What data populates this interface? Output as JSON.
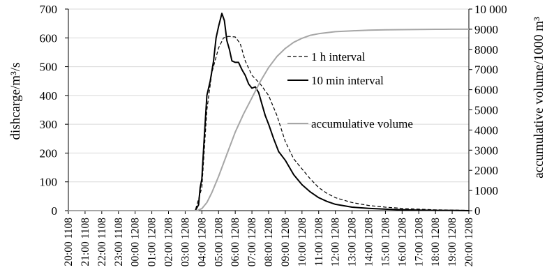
{
  "chart_data": {
    "type": "line",
    "xlabel": "",
    "ylabel": "dishcarge/m³/s",
    "y2label": "accumulative volume/1000 m³",
    "ylim": [
      0,
      700
    ],
    "y2lim": [
      0,
      10000
    ],
    "yticks": [
      0,
      100,
      200,
      300,
      400,
      500,
      600,
      700
    ],
    "y2ticks": [
      "0",
      "1000",
      "2000",
      "3000",
      "4000",
      "5000",
      "6000",
      "7000",
      "8000",
      "9000",
      "10 000"
    ],
    "y2tick_values": [
      0,
      1000,
      2000,
      3000,
      4000,
      5000,
      6000,
      7000,
      8000,
      9000,
      10000
    ],
    "categories": [
      "20:00 1108",
      "21:00 1108",
      "22:00 1108",
      "23:00 1108",
      "00:00 1208",
      "01:00 1208",
      "02:00 1208",
      "03:00 1208",
      "04:00 1208",
      "05:00 1208",
      "06:00 1208",
      "07:00 1208",
      "08:00 1208",
      "09:00 1208",
      "10:00 1208",
      "11:00 1208",
      "12:00 1208",
      "13:00 1208",
      "14:00 1208",
      "15:00 1208",
      "16:00 1208",
      "17:00 1208",
      "18:00 1208",
      "19:00 1208",
      "20:00 1208"
    ],
    "grid": true,
    "legend_position": "right-middle",
    "series": [
      {
        "name": "1 h interval",
        "axis": "left",
        "style": "dashed",
        "color": "#000000",
        "x": [
          0,
          1,
          2,
          3,
          4,
          5,
          6,
          7,
          7.6,
          8,
          8.3,
          8.6,
          9,
          9.3,
          9.6,
          10,
          10.3,
          10.6,
          11,
          11.5,
          12,
          12.5,
          13,
          13.5,
          14,
          14.5,
          15,
          15.5,
          16,
          17,
          18,
          19,
          20,
          21,
          22,
          23,
          24
        ],
        "values": [
          0,
          0,
          0,
          0,
          0,
          0,
          0,
          0,
          0,
          80,
          350,
          480,
          565,
          600,
          605,
          603,
          580,
          520,
          470,
          440,
          400,
          330,
          240,
          180,
          145,
          110,
          80,
          60,
          45,
          28,
          18,
          12,
          8,
          5,
          3,
          2,
          1
        ]
      },
      {
        "name": "10 min interval",
        "axis": "left",
        "style": "solid",
        "color": "#000000",
        "x": [
          0,
          1,
          2,
          3,
          4,
          5,
          6,
          7,
          7.6,
          7.8,
          7.9,
          8.0,
          8.15,
          8.3,
          8.5,
          8.7,
          8.85,
          9,
          9.2,
          9.35,
          9.5,
          9.65,
          9.8,
          10,
          10.2,
          10.4,
          10.6,
          10.8,
          11,
          11.2,
          11.4,
          11.6,
          11.8,
          12,
          12.3,
          12.6,
          13,
          13.5,
          14,
          14.5,
          15,
          15.5,
          16,
          17,
          18,
          19,
          20,
          21,
          22,
          23,
          24
        ],
        "values": [
          0,
          0,
          0,
          0,
          0,
          0,
          0,
          0,
          0,
          20,
          80,
          110,
          260,
          400,
          450,
          520,
          600,
          640,
          685,
          660,
          590,
          560,
          520,
          515,
          515,
          490,
          470,
          440,
          425,
          430,
          410,
          370,
          330,
          300,
          250,
          205,
          175,
          125,
          90,
          65,
          45,
          32,
          22,
          12,
          8,
          5,
          3,
          2,
          1,
          1,
          0
        ]
      },
      {
        "name": "accumulative volume",
        "axis": "right",
        "style": "solid",
        "color": "#a6a6a6",
        "x": [
          0,
          1,
          2,
          3,
          4,
          5,
          6,
          7,
          7.7,
          8,
          8.3,
          8.6,
          9,
          9.5,
          10,
          10.5,
          11,
          11.5,
          12,
          12.5,
          13,
          13.5,
          14,
          14.5,
          15,
          16,
          17,
          18,
          19,
          20,
          21,
          22,
          23,
          24
        ],
        "values": [
          0,
          0,
          0,
          0,
          0,
          0,
          0,
          0,
          0,
          100,
          400,
          900,
          1700,
          2800,
          3900,
          4800,
          5600,
          6400,
          7100,
          7650,
          8050,
          8350,
          8550,
          8700,
          8780,
          8880,
          8920,
          8950,
          8970,
          8980,
          8990,
          8995,
          9000,
          9000
        ]
      }
    ]
  }
}
